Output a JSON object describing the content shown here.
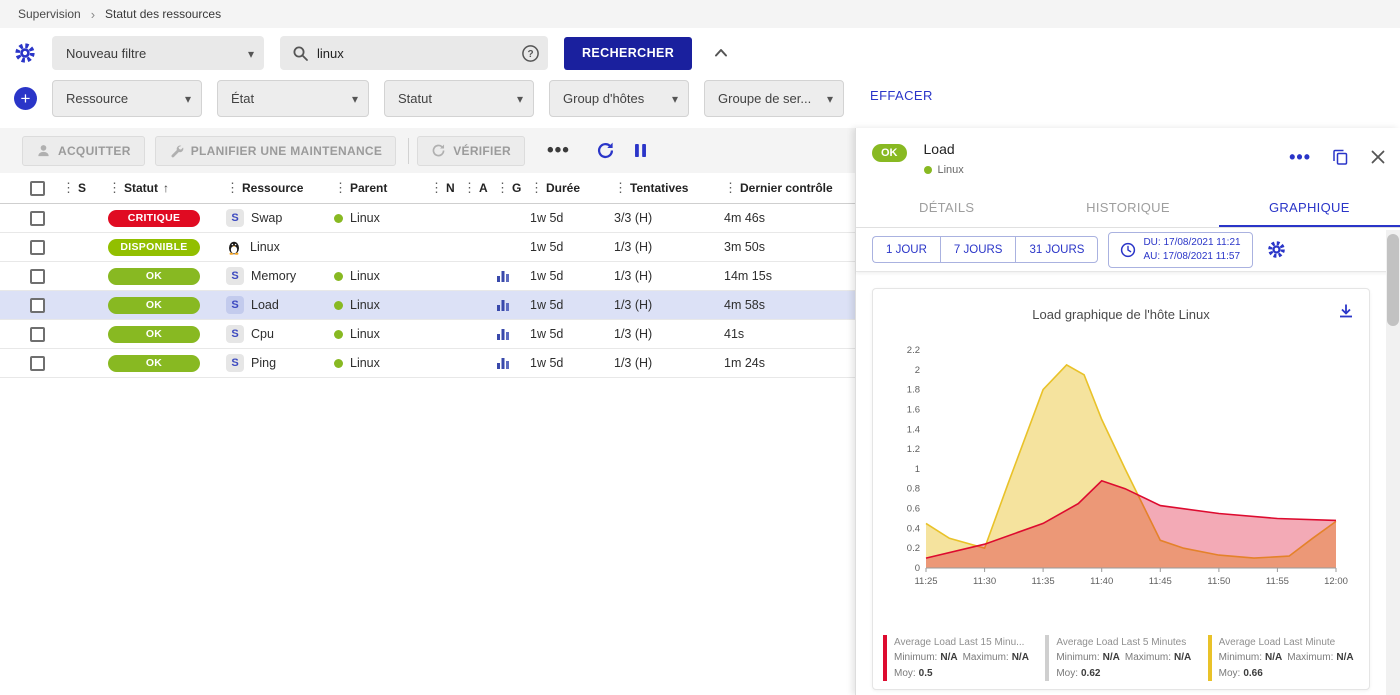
{
  "colors": {
    "accent": "#2a35c8",
    "primary_dark": "#1a209e",
    "ok_green": "#88b922",
    "selected_row": "#dce1f6"
  },
  "icons": {
    "settings": "gear",
    "search": "magnifier",
    "help": "question-circle",
    "collapse": "chevron-up",
    "add_filter": "plus-circle",
    "dropdown": "caret-down",
    "acknowledge": "person",
    "maintenance": "wrench",
    "check": "refresh",
    "more": "horizontal-dots",
    "refresh": "refresh-arrow",
    "pause": "pause-bars",
    "sort": "arrow-up",
    "graph": "bar-chart",
    "host_linux": "penguin",
    "copy": "copy-squares",
    "close": "x",
    "clock": "clock",
    "download": "download-arrow"
  },
  "breadcrumb": {
    "section": "Supervision",
    "page": "Statut des ressources"
  },
  "filter_bar": {
    "filter_select_value": "Nouveau filtre",
    "search_value": "linux",
    "search_button": "RECHERCHER"
  },
  "criteria_bar": {
    "dropdowns": [
      {
        "label": "Ressource"
      },
      {
        "label": "État"
      },
      {
        "label": "Statut"
      },
      {
        "label": "Group d'hôtes"
      },
      {
        "label": "Groupe de ser..."
      }
    ],
    "clear_label": "EFFACER"
  },
  "toolbar": {
    "acknowledge_label": "ACQUITTER",
    "maintenance_label": "PLANIFIER UNE MAINTENANCE",
    "check_label": "VÉRIFIER"
  },
  "table": {
    "headers": {
      "severity": "S",
      "status": "Statut",
      "resource": "Ressource",
      "parent": "Parent",
      "n": "N",
      "a": "A",
      "g": "G",
      "duration": "Durée",
      "tries": "Tentatives",
      "last_check": "Dernier contrôle"
    },
    "rows": [
      {
        "status": "CRITIQUE",
        "status_color": "#e00b22",
        "type": "service",
        "type_letter": "S",
        "resource": "Swap",
        "parent": "Linux",
        "has_graph": false,
        "duration": "1w 5d",
        "tries": "3/3 (H)",
        "last_check": "4m 46s",
        "selected": false
      },
      {
        "status": "DISPONIBLE",
        "status_color": "#92bf00",
        "type": "host",
        "type_letter": "",
        "resource": "Linux",
        "parent": "",
        "has_graph": false,
        "duration": "1w 5d",
        "tries": "1/3 (H)",
        "last_check": "3m 50s",
        "selected": false
      },
      {
        "status": "OK",
        "status_color": "#88b922",
        "type": "service",
        "type_letter": "S",
        "resource": "Memory",
        "parent": "Linux",
        "has_graph": true,
        "duration": "1w 5d",
        "tries": "1/3 (H)",
        "last_check": "14m 15s",
        "selected": false
      },
      {
        "status": "OK",
        "status_color": "#88b922",
        "type": "service",
        "type_letter": "S",
        "resource": "Load",
        "parent": "Linux",
        "has_graph": true,
        "duration": "1w 5d",
        "tries": "1/3 (H)",
        "last_check": "4m 58s",
        "selected": true
      },
      {
        "status": "OK",
        "status_color": "#88b922",
        "type": "service",
        "type_letter": "S",
        "resource": "Cpu",
        "parent": "Linux",
        "has_graph": true,
        "duration": "1w 5d",
        "tries": "1/3 (H)",
        "last_check": "41s",
        "selected": false
      },
      {
        "status": "OK",
        "status_color": "#88b922",
        "type": "service",
        "type_letter": "S",
        "resource": "Ping",
        "parent": "Linux",
        "has_graph": true,
        "duration": "1w 5d",
        "tries": "1/3 (H)",
        "last_check": "1m 24s",
        "selected": false
      }
    ]
  },
  "panel": {
    "status": "OK",
    "title": "Load",
    "host": "Linux",
    "tabs": [
      {
        "label": "DÉTAILS"
      },
      {
        "label": "HISTORIQUE"
      },
      {
        "label": "GRAPHIQUE"
      }
    ],
    "active_tab": "GRAPHIQUE",
    "time_ranges": [
      {
        "label": "1 JOUR"
      },
      {
        "label": "7 JOURS"
      },
      {
        "label": "31 JOURS"
      }
    ],
    "date_from_label": "DU:",
    "date_from": "17/08/2021 11:21",
    "date_to_label": "AU:",
    "date_to": "17/08/2021 11:57",
    "chart_title": "Load graphique de l'hôte Linux",
    "legend_labels": {
      "min": "Minimum:",
      "max": "Maximum:",
      "avg": "Moy:"
    },
    "legend": [
      {
        "name": "Average Load Last 15 Minu...",
        "min": "N/A",
        "max": "N/A",
        "avg": "0.5",
        "color": "#dd0b2f"
      },
      {
        "name": "Average Load Last 5 Minutes",
        "min": "N/A",
        "max": "N/A",
        "avg": "0.62",
        "color": "#cfcfcf"
      },
      {
        "name": "Average Load Last Minute",
        "min": "N/A",
        "max": "N/A",
        "avg": "0.66",
        "color": "#e9c229"
      }
    ]
  },
  "chart_data": {
    "type": "area",
    "title": "Load graphique de l'hôte Linux",
    "xlabel": "",
    "ylabel": "",
    "xticks": [
      "11:25",
      "11:30",
      "11:35",
      "11:40",
      "11:45",
      "11:50",
      "11:55",
      "12:00"
    ],
    "xtick_pos": [
      0,
      5,
      10,
      15,
      20,
      25,
      30,
      35
    ],
    "x_range": [
      0,
      35
    ],
    "ylim": [
      0,
      2.2
    ],
    "yticks": [
      0,
      0.2,
      0.4,
      0.6,
      0.8,
      1,
      1.2,
      1.4,
      1.6,
      1.8,
      2,
      2.2
    ],
    "legend_position": "bottom",
    "grid": false,
    "series": [
      {
        "name": "Average Load Last Minute",
        "color": "#e9c229",
        "fill_opacity": 0.45,
        "points": [
          [
            0,
            0.45
          ],
          [
            2,
            0.3
          ],
          [
            5,
            0.2
          ],
          [
            7,
            0.85
          ],
          [
            10,
            1.8
          ],
          [
            12,
            2.05
          ],
          [
            13.5,
            1.95
          ],
          [
            15,
            1.5
          ],
          [
            17,
            1.0
          ],
          [
            20,
            0.28
          ],
          [
            22,
            0.2
          ],
          [
            25,
            0.13
          ],
          [
            28,
            0.1
          ],
          [
            31,
            0.12
          ],
          [
            33,
            0.3
          ],
          [
            35,
            0.47
          ]
        ]
      },
      {
        "name": "Average Load Last 5 Minutes",
        "color": "#cfcfcf",
        "fill_opacity": 0,
        "points": []
      },
      {
        "name": "Average Load Last 15 Minutes",
        "color": "#dd0b2f",
        "fill_opacity": 0.35,
        "points": [
          [
            0,
            0.1
          ],
          [
            5,
            0.24
          ],
          [
            10,
            0.45
          ],
          [
            13,
            0.65
          ],
          [
            15,
            0.88
          ],
          [
            17,
            0.8
          ],
          [
            20,
            0.63
          ],
          [
            25,
            0.55
          ],
          [
            30,
            0.5
          ],
          [
            35,
            0.48
          ]
        ]
      }
    ]
  }
}
